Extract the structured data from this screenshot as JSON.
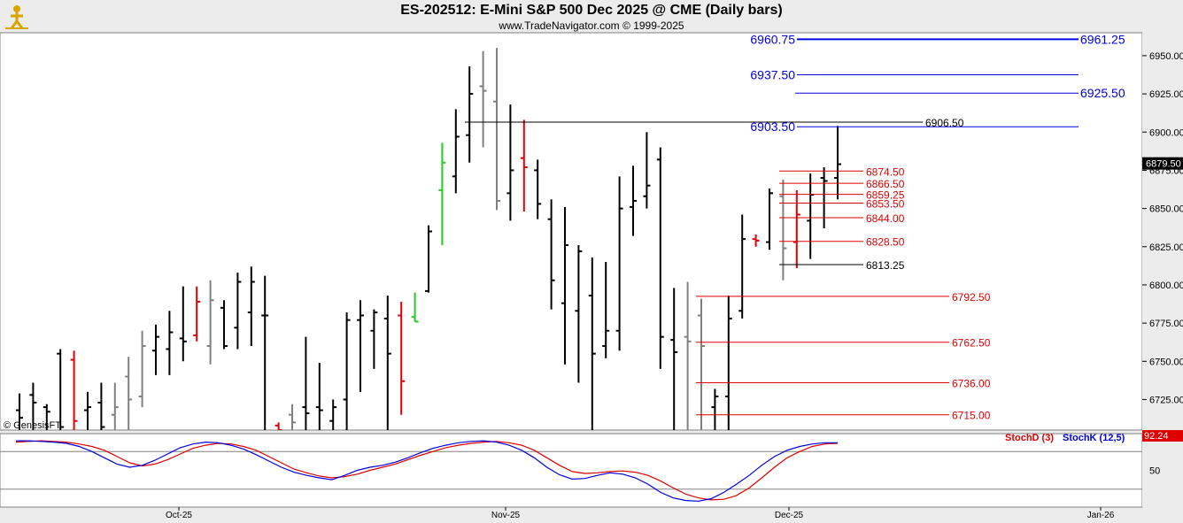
{
  "header": {
    "title": "ES-202512:  E-Mini S&P 500 Dec 2025 @ CME  (Daily bars)",
    "subtitle": "www.TradeNavigator.com © 1999-2025",
    "copyright": "© GenesisFT",
    "logo_icon": "trader-figure-icon"
  },
  "chart_data": [
    {
      "type": "ohlc",
      "ylim": [
        6705,
        6965
      ],
      "y_ticks": [
        "6725.00",
        "6750.00",
        "6775.00",
        "6800.00",
        "6825.00",
        "6850.00",
        "6875.00",
        "6900.00",
        "6925.00",
        "6950.00"
      ],
      "x_ticks": [
        "Oct-25",
        "Nov-25",
        "Dec-25",
        "Jan-26"
      ],
      "last_price_label": "6879.50",
      "colors": {
        "up": "#000000",
        "down": "#000000",
        "neutral": "#808080",
        "red": "#e0000a",
        "green": "#22cc22",
        "blue_level": "#0000e0",
        "red_level": "#e00000"
      },
      "bars": [
        {
          "h": 6729,
          "l": 6700,
          "o": 6718,
          "c": 6713,
          "color": "black"
        },
        {
          "h": 6736,
          "l": 6700,
          "o": 6728,
          "c": 6723,
          "color": "black"
        },
        {
          "h": 6722,
          "l": 6700,
          "o": 6720,
          "c": 6717,
          "color": "black"
        },
        {
          "h": 6758,
          "l": 6700,
          "o": 6755,
          "c": 6707,
          "color": "black"
        },
        {
          "h": 6757,
          "l": 6700,
          "o": 6751,
          "c": 6711,
          "color": "red"
        },
        {
          "h": 6730,
          "l": 6700,
          "o": 6718,
          "c": 6720,
          "color": "black"
        },
        {
          "h": 6736,
          "l": 6700,
          "o": 6723,
          "c": 6707,
          "color": "black"
        },
        {
          "h": 6736,
          "l": 6700,
          "o": 6715,
          "c": 6720,
          "color": "gray"
        },
        {
          "h": 6753,
          "l": 6700,
          "o": 6740,
          "c": 6725,
          "color": "gray"
        },
        {
          "h": 6770,
          "l": 6720,
          "o": 6727,
          "c": 6760,
          "color": "gray"
        },
        {
          "h": 6774,
          "l": 6741,
          "o": 6757,
          "c": 6766,
          "color": "black"
        },
        {
          "h": 6783,
          "l": 6741,
          "o": 6758,
          "c": 6769,
          "color": "black"
        },
        {
          "h": 6799,
          "l": 6750,
          "o": 6765,
          "c": 6763,
          "color": "black"
        },
        {
          "h": 6799,
          "l": 6763,
          "o": 6767,
          "c": 6789,
          "color": "red"
        },
        {
          "h": 6803,
          "l": 6748,
          "o": 6760,
          "c": 6790,
          "color": "gray"
        },
        {
          "h": 6790,
          "l": 6758,
          "o": 6785,
          "c": 6760,
          "color": "black"
        },
        {
          "h": 6808,
          "l": 6758,
          "o": 6772,
          "c": 6802,
          "color": "black"
        },
        {
          "h": 6812,
          "l": 6760,
          "o": 6782,
          "c": 6802,
          "color": "black"
        },
        {
          "h": 6806,
          "l": 6700,
          "o": 6780,
          "c": 6780,
          "color": "black"
        },
        {
          "h": 6710,
          "l": 6700,
          "o": 6708,
          "c": 6705,
          "color": "red"
        },
        {
          "h": 6722,
          "l": 6700,
          "o": 6715,
          "c": 6710,
          "color": "gray"
        },
        {
          "h": 6766,
          "l": 6700,
          "o": 6720,
          "c": 6716,
          "color": "black"
        },
        {
          "h": 6749,
          "l": 6700,
          "o": 6720,
          "c": 6718,
          "color": "black"
        },
        {
          "h": 6725,
          "l": 6700,
          "o": 6711,
          "c": 6720,
          "color": "black"
        },
        {
          "h": 6782,
          "l": 6700,
          "o": 6725,
          "c": 6777,
          "color": "black"
        },
        {
          "h": 6790,
          "l": 6730,
          "o": 6777,
          "c": 6780,
          "color": "black"
        },
        {
          "h": 6784,
          "l": 6745,
          "o": 6770,
          "c": 6782,
          "color": "black"
        },
        {
          "h": 6793,
          "l": 6700,
          "o": 6778,
          "c": 6755,
          "color": "black"
        },
        {
          "h": 6789,
          "l": 6715,
          "o": 6780,
          "c": 6737,
          "color": "red"
        },
        {
          "h": 6795,
          "l": 6776,
          "o": 6779,
          "c": 6776,
          "color": "green"
        },
        {
          "h": 6839,
          "l": 6795,
          "o": 6796,
          "c": 6835,
          "color": "black"
        },
        {
          "h": 6893,
          "l": 6826,
          "o": 6862,
          "c": 6880,
          "color": "green"
        },
        {
          "h": 6915,
          "l": 6860,
          "o": 6871,
          "c": 6897,
          "color": "black"
        },
        {
          "h": 6943,
          "l": 6880,
          "o": 6898,
          "c": 6925,
          "color": "black"
        },
        {
          "h": 6953,
          "l": 6890,
          "o": 6930,
          "c": 6927,
          "color": "gray"
        },
        {
          "h": 6955,
          "l": 6849,
          "o": 6920,
          "c": 6855,
          "color": "gray"
        },
        {
          "h": 6918,
          "l": 6842,
          "o": 6860,
          "c": 6875,
          "color": "black"
        },
        {
          "h": 6908,
          "l": 6848,
          "o": 6883,
          "c": 6877,
          "color": "red"
        },
        {
          "h": 6882,
          "l": 6843,
          "o": 6875,
          "c": 6853,
          "color": "black"
        },
        {
          "h": 6856,
          "l": 6784,
          "o": 6843,
          "c": 6803,
          "color": "black"
        },
        {
          "h": 6851,
          "l": 6748,
          "o": 6788,
          "c": 6826,
          "color": "black"
        },
        {
          "h": 6826,
          "l": 6736,
          "o": 6783,
          "c": 6822,
          "color": "black"
        },
        {
          "h": 6818,
          "l": 6700,
          "o": 6793,
          "c": 6755,
          "color": "black"
        },
        {
          "h": 6815,
          "l": 6752,
          "o": 6760,
          "c": 6770,
          "color": "black"
        },
        {
          "h": 6871,
          "l": 6757,
          "o": 6770,
          "c": 6850,
          "color": "black"
        },
        {
          "h": 6878,
          "l": 6832,
          "o": 6851,
          "c": 6855,
          "color": "black"
        },
        {
          "h": 6900,
          "l": 6850,
          "o": 6858,
          "c": 6865,
          "color": "black"
        },
        {
          "h": 6890,
          "l": 6745,
          "o": 6882,
          "c": 6766,
          "color": "black"
        },
        {
          "h": 6798,
          "l": 6700,
          "o": 6764,
          "c": 6756,
          "color": "black"
        },
        {
          "h": 6802,
          "l": 6700,
          "o": 6766,
          "c": 6763,
          "color": "gray"
        },
        {
          "h": 6791,
          "l": 6700,
          "o": 6780,
          "c": 6760,
          "color": "gray"
        },
        {
          "h": 6732,
          "l": 6700,
          "o": 6720,
          "c": 6727,
          "color": "black"
        },
        {
          "h": 6793,
          "l": 6700,
          "o": 6727,
          "c": 6778,
          "color": "black"
        },
        {
          "h": 6846,
          "l": 6778,
          "o": 6783,
          "c": 6830,
          "color": "black"
        },
        {
          "h": 6833,
          "l": 6825,
          "o": 6830,
          "c": 6829,
          "color": "red"
        },
        {
          "h": 6863,
          "l": 6823,
          "o": 6828,
          "c": 6860,
          "color": "black"
        },
        {
          "h": 6869,
          "l": 6803,
          "o": 6858,
          "c": 6824,
          "color": "gray"
        },
        {
          "h": 6862,
          "l": 6811,
          "o": 6828,
          "c": 6846,
          "color": "red"
        },
        {
          "h": 6873,
          "l": 6817,
          "o": 6842,
          "c": 6859,
          "color": "black"
        },
        {
          "h": 6877,
          "l": 6837,
          "o": 6870,
          "c": 6868,
          "color": "black"
        },
        {
          "h": 6904,
          "l": 6856,
          "o": 6870,
          "c": 6879,
          "color": "black"
        }
      ],
      "levels": [
        {
          "value": 6960.75,
          "label_left": "6960.75",
          "label_right": "6961.25",
          "color": "blue",
          "style": "bold"
        },
        {
          "value": 6937.5,
          "label_left": "6937.50",
          "label_right": "",
          "color": "blue",
          "style": "thin"
        },
        {
          "value": 6925.5,
          "label_left": "",
          "label_right": "6925.50",
          "color": "blue",
          "style": "thin"
        },
        {
          "value": 6903.5,
          "label_left": "6903.50",
          "label_right": "",
          "color": "blue",
          "style": "thin"
        },
        {
          "value": 6906.5,
          "label_left": "",
          "label_right": "6906.50",
          "color": "black",
          "style": "thin"
        },
        {
          "value": 6874.5,
          "label_left": "",
          "label_right": "6874.50",
          "color": "red",
          "style": "thin"
        },
        {
          "value": 6866.5,
          "label_left": "",
          "label_right": "6866.50",
          "color": "red",
          "style": "thin"
        },
        {
          "value": 6859.25,
          "label_left": "",
          "label_right": "6859.25",
          "color": "red",
          "style": "thin"
        },
        {
          "value": 6853.5,
          "label_left": "",
          "label_right": "6853.50",
          "color": "red",
          "style": "thin"
        },
        {
          "value": 6844.0,
          "label_left": "",
          "label_right": "6844.00",
          "color": "red",
          "style": "thin"
        },
        {
          "value": 6828.5,
          "label_left": "",
          "label_right": "6828.50",
          "color": "red",
          "style": "thin"
        },
        {
          "value": 6813.25,
          "label_left": "",
          "label_right": "6813.25",
          "color": "black",
          "style": "thin"
        },
        {
          "value": 6792.5,
          "label_left": "",
          "label_right": "6792.50",
          "color": "red",
          "style": "thin"
        },
        {
          "value": 6762.5,
          "label_left": "",
          "label_right": "6762.50",
          "color": "red",
          "style": "thin"
        },
        {
          "value": 6736.0,
          "label_left": "",
          "label_right": "6736.00",
          "color": "red",
          "style": "thin"
        },
        {
          "value": 6715.0,
          "label_left": "",
          "label_right": "6715.00",
          "color": "red",
          "style": "thin"
        }
      ]
    },
    {
      "type": "line",
      "ylim": [
        0,
        100
      ],
      "y_ticks": [
        "50"
      ],
      "last_value_label": "92.24",
      "series": [
        {
          "name": "StochD (3)",
          "color": "#e00000",
          "values": [
            95,
            96,
            97,
            96,
            95,
            92,
            88,
            82,
            72,
            62,
            57,
            60,
            67,
            76,
            85,
            90,
            93,
            92,
            88,
            82,
            72,
            62,
            52,
            46,
            41,
            38,
            40,
            44,
            50,
            55,
            60,
            67,
            74,
            80,
            86,
            90,
            93,
            95,
            96,
            94,
            90,
            82,
            70,
            58,
            48,
            45,
            46,
            48,
            49,
            47,
            42,
            33,
            22,
            12,
            6,
            3,
            4,
            10,
            22,
            38,
            55,
            70,
            80,
            88,
            92,
            93
          ]
        },
        {
          "name": "StochK (12,5)",
          "color": "#0000e0",
          "values": [
            97,
            97,
            96,
            95,
            93,
            88,
            80,
            70,
            60,
            55,
            58,
            66,
            76,
            86,
            92,
            95,
            94,
            90,
            84,
            75,
            65,
            55,
            47,
            42,
            38,
            35,
            42,
            50,
            55,
            58,
            63,
            70,
            78,
            85,
            90,
            94,
            96,
            97,
            95,
            90,
            82,
            70,
            55,
            43,
            36,
            37,
            42,
            46,
            44,
            38,
            28,
            15,
            6,
            2,
            1,
            5,
            15,
            28,
            42,
            58,
            72,
            82,
            88,
            92,
            94,
            94
          ]
        }
      ]
    }
  ]
}
